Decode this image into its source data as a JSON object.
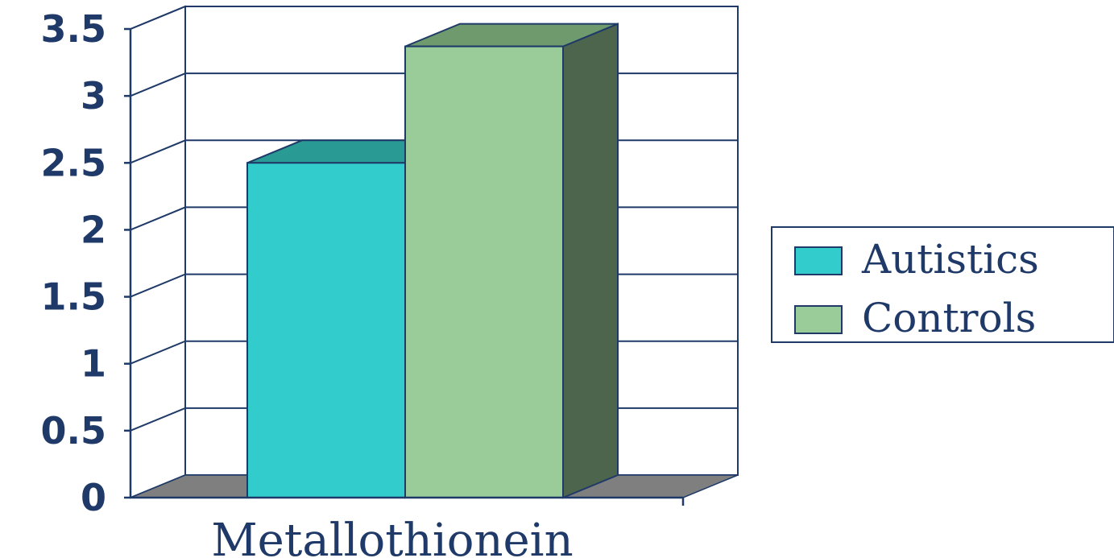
{
  "chart_data": {
    "type": "bar",
    "categories": [
      "Metallothionein"
    ],
    "series": [
      {
        "name": "Autistics",
        "values": [
          2.5
        ],
        "color": "#33cccc",
        "top_color": "#2a9a95",
        "side_color": "#1f7a78"
      },
      {
        "name": "Controls",
        "values": [
          3.37
        ],
        "color": "#99cc99",
        "top_color": "#6e9a6e",
        "side_color": "#4d654d"
      }
    ],
    "ylim": [
      0,
      3.5
    ],
    "yticks": [
      "0",
      "0.5",
      "1",
      "1.5",
      "2",
      "2.5",
      "3",
      "3.5"
    ],
    "grid": true,
    "legend_position": "right",
    "floor_color": "#7f7f7f",
    "axis_color": "#1f3a68"
  }
}
